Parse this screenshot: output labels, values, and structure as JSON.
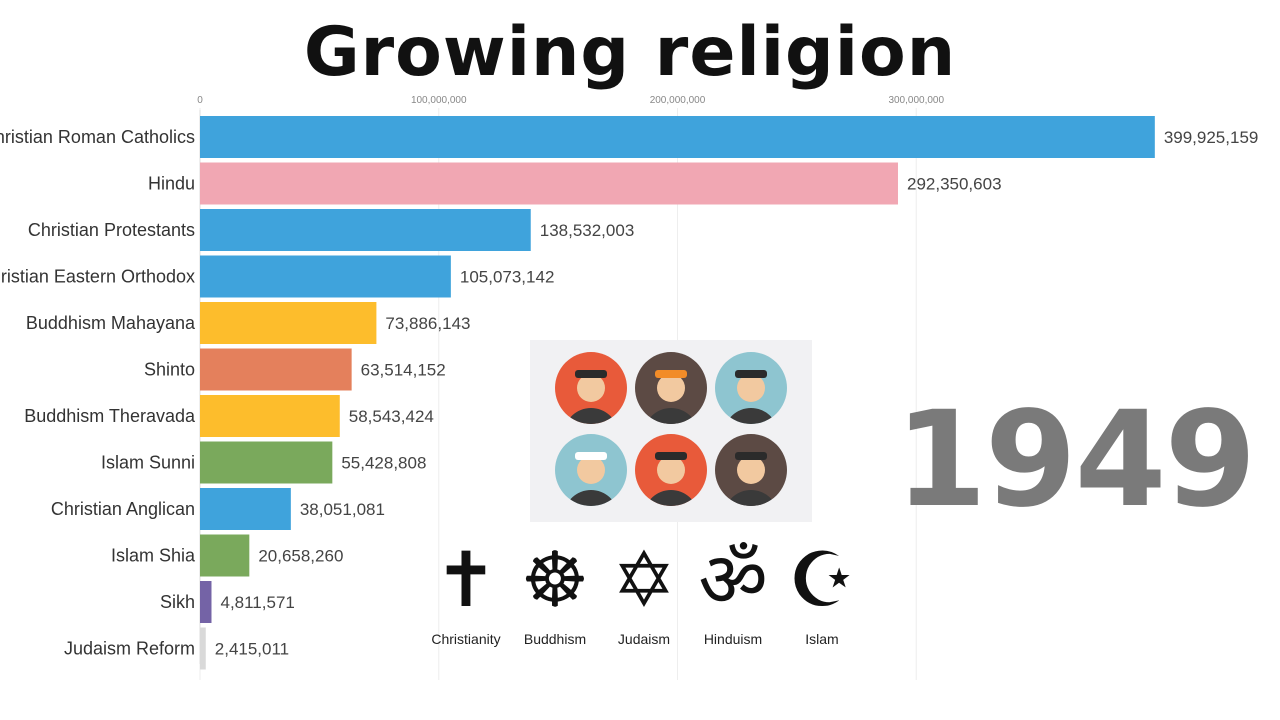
{
  "title": "Growing religion",
  "year": "1949",
  "chart_data": {
    "type": "bar",
    "orientation": "horizontal",
    "categories": [
      "Christian Roman Catholics",
      "Hindu",
      "Christian Protestants",
      "Christian Eastern Orthodox",
      "Buddhism Mahayana",
      "Shinto",
      "Buddhism Theravada",
      "Islam Sunni",
      "Christian Anglican",
      "Islam Shia",
      "Sikh",
      "Judaism Reform"
    ],
    "values": [
      399925159,
      292350603,
      138532003,
      105073142,
      73886143,
      63514152,
      58543424,
      55428808,
      38051081,
      20658260,
      4811571,
      2415011
    ],
    "value_labels": [
      "399,925,159",
      "292,350,603",
      "138,532,003",
      "105,073,142",
      "73,886,143",
      "63,514,152",
      "58,543,424",
      "55,428,808",
      "38,051,081",
      "20,658,260",
      "4,811,571",
      "2,415,011"
    ],
    "bar_colors": [
      "#3fa3dc",
      "#f1a7b3",
      "#3fa3dc",
      "#3fa3dc",
      "#fdbd2c",
      "#e4805c",
      "#fdbd2c",
      "#7aa95c",
      "#3fa3dc",
      "#7aa95c",
      "#7463a6",
      "#d9d9d9"
    ],
    "x_ticks": [
      0,
      100000000,
      200000000,
      300000000
    ],
    "x_tick_labels": [
      "0",
      "100,000,000",
      "200,000,000",
      "300,000,000"
    ],
    "xlim": [
      0,
      400000000
    ],
    "grid": true
  },
  "symbols": [
    {
      "icon": "christian-cross-icon",
      "glyph": "✝",
      "label": "Christianity"
    },
    {
      "icon": "dharma-wheel-icon",
      "glyph": "☸",
      "label": "Buddhism"
    },
    {
      "icon": "star-of-david-icon",
      "glyph": "✡",
      "label": "Judaism"
    },
    {
      "icon": "om-icon",
      "glyph": "ॐ",
      "label": "Hinduism"
    },
    {
      "icon": "crescent-star-icon",
      "glyph": "☪",
      "label": "Islam"
    }
  ],
  "faces": [
    {
      "icon": "person-with-hat-icon",
      "bg": "#e85a3a"
    },
    {
      "icon": "person-with-turban-icon",
      "bg": "#5c4a44"
    },
    {
      "icon": "person-with-cross-icon",
      "bg": "#8ec5d0"
    },
    {
      "icon": "person-with-kufi-icon",
      "bg": "#8ec5d0"
    },
    {
      "icon": "person-with-black-hat-icon",
      "bg": "#e85a3a"
    },
    {
      "icon": "monk-icon",
      "bg": "#5c4a44"
    }
  ]
}
